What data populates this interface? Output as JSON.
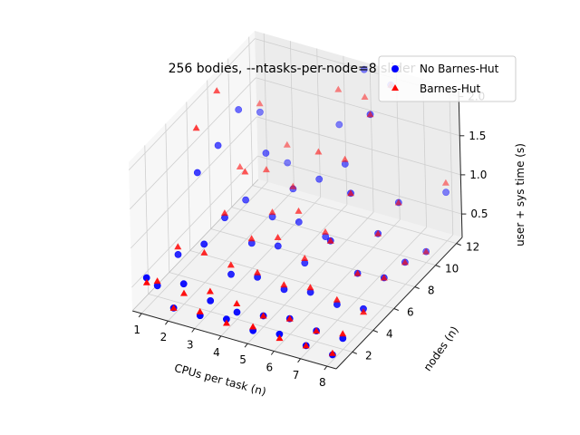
{
  "chart_data": {
    "type": "scatter",
    "title": "256 bodies, --ntasks-per-node=8 slider",
    "xlabel": "CPUs per task (n)",
    "ylabel": "nodes (n)",
    "zlabel": "user + sys time (s)",
    "x_ticks": [
      "1",
      "2",
      "3",
      "4",
      "5",
      "6",
      "7",
      "8"
    ],
    "y_ticks": [
      "2",
      "4",
      "6",
      "8",
      "10",
      "12"
    ],
    "z_ticks": [
      "0.5",
      "1.0",
      "1.5",
      "2.0"
    ],
    "xlim": [
      0.65,
      8.35
    ],
    "ylim": [
      0.45,
      12.55
    ],
    "zlim": [
      0.2,
      2.1
    ],
    "grid": true,
    "legend_position": "top-right",
    "colors": {
      "no_bh": "#0000ff",
      "bh": "#ff0000"
    },
    "series": [
      {
        "name": "No Barnes-Hut",
        "marker": "circle",
        "points": [
          [
            1,
            1,
            0.58
          ],
          [
            1,
            2,
            0.34
          ],
          [
            1,
            4,
            0.46
          ],
          [
            1,
            6,
            1.23
          ],
          [
            1,
            8,
            1.3
          ],
          [
            1,
            10,
            1.48
          ],
          [
            1,
            12,
            1.17
          ],
          [
            2,
            1,
            0.29
          ],
          [
            2,
            2,
            0.46
          ],
          [
            2,
            4,
            0.69
          ],
          [
            2,
            6,
            0.75
          ],
          [
            2,
            8,
            0.7
          ],
          [
            2,
            10,
            1.02
          ],
          [
            2,
            12,
            0.62
          ],
          [
            3,
            1,
            0.29
          ],
          [
            3,
            2,
            0.34
          ],
          [
            3,
            4,
            0.4
          ],
          [
            3,
            6,
            0.52
          ],
          [
            3,
            8,
            0.58
          ],
          [
            3,
            10,
            0.66
          ],
          [
            4,
            1,
            0.34
          ],
          [
            4,
            2,
            0.29
          ],
          [
            4,
            4,
            0.46
          ],
          [
            4,
            6,
            0.58
          ],
          [
            4,
            8,
            0.61
          ],
          [
            4,
            10,
            0.88
          ],
          [
            4,
            12,
            1.3
          ],
          [
            5,
            1,
            0.29
          ],
          [
            5,
            2,
            0.34
          ],
          [
            5,
            4,
            0.4
          ],
          [
            5,
            6,
            0.46
          ],
          [
            5,
            8,
            0.52
          ],
          [
            5,
            10,
            1.17
          ],
          [
            5,
            12,
            2.1
          ],
          [
            6,
            1,
            0.34
          ],
          [
            6,
            2,
            0.4
          ],
          [
            6,
            4,
            0.46
          ],
          [
            6,
            6,
            0.84
          ],
          [
            6,
            8,
            1.17
          ],
          [
            6,
            10,
            1.9
          ],
          [
            6,
            12,
            2.0
          ],
          [
            7,
            1,
            0.29
          ],
          [
            7,
            2,
            0.34
          ],
          [
            7,
            4,
            0.4
          ],
          [
            7,
            6,
            0.52
          ],
          [
            7,
            8,
            0.75
          ],
          [
            7,
            10,
            0.87
          ],
          [
            8,
            1,
            0.27
          ],
          [
            8,
            2,
            0.34
          ],
          [
            8,
            4,
            0.44
          ],
          [
            8,
            6,
            0.56
          ],
          [
            8,
            8,
            0.48
          ],
          [
            8,
            10,
            0.34
          ],
          [
            8,
            12,
            0.82
          ]
        ]
      },
      {
        "name": "Barnes-Hut",
        "marker": "triangle",
        "points": [
          [
            1,
            1,
            0.52
          ],
          [
            1,
            2,
            0.4
          ],
          [
            1,
            4,
            0.56
          ],
          [
            1,
            6,
            1.8
          ],
          [
            1,
            8,
            2.0
          ],
          [
            1,
            10,
            0.75
          ],
          [
            1,
            12,
            1.28
          ],
          [
            2,
            1,
            0.29
          ],
          [
            2,
            2,
            0.34
          ],
          [
            2,
            4,
            0.58
          ],
          [
            2,
            6,
            0.81
          ],
          [
            2,
            8,
            1.06
          ],
          [
            2,
            10,
            0.81
          ],
          [
            2,
            12,
            0.85
          ],
          [
            3,
            1,
            0.34
          ],
          [
            3,
            2,
            0.46
          ],
          [
            3,
            4,
            0.52
          ],
          [
            3,
            6,
            0.58
          ],
          [
            3,
            8,
            0.64
          ],
          [
            3,
            10,
            0.69
          ],
          [
            4,
            1,
            0.29
          ],
          [
            4,
            2,
            0.4
          ],
          [
            4,
            4,
            0.52
          ],
          [
            4,
            6,
            0.69
          ],
          [
            4,
            8,
            0.75
          ],
          [
            4,
            10,
            1.23
          ],
          [
            4,
            12,
            1.75
          ],
          [
            5,
            1,
            0.34
          ],
          [
            5,
            2,
            0.34
          ],
          [
            5,
            4,
            0.46
          ],
          [
            5,
            6,
            0.52
          ],
          [
            5,
            8,
            0.58
          ],
          [
            5,
            10,
            1.23
          ],
          [
            5,
            12,
            1.75
          ],
          [
            6,
            1,
            0.29
          ],
          [
            6,
            2,
            0.4
          ],
          [
            6,
            4,
            0.52
          ],
          [
            6,
            6,
            0.84
          ],
          [
            6,
            8,
            1.17
          ],
          [
            6,
            10,
            1.9
          ],
          [
            6,
            12,
            2.0
          ],
          [
            7,
            1,
            0.29
          ],
          [
            7,
            2,
            0.34
          ],
          [
            7,
            4,
            0.46
          ],
          [
            7,
            6,
            0.52
          ],
          [
            7,
            8,
            0.75
          ],
          [
            7,
            10,
            0.87
          ],
          [
            8,
            1,
            0.29
          ],
          [
            8,
            2,
            0.4
          ],
          [
            8,
            4,
            0.4
          ],
          [
            8,
            6,
            0.56
          ],
          [
            8,
            8,
            0.48
          ],
          [
            8,
            10,
            0.34
          ],
          [
            8,
            12,
            0.94
          ]
        ]
      }
    ]
  }
}
